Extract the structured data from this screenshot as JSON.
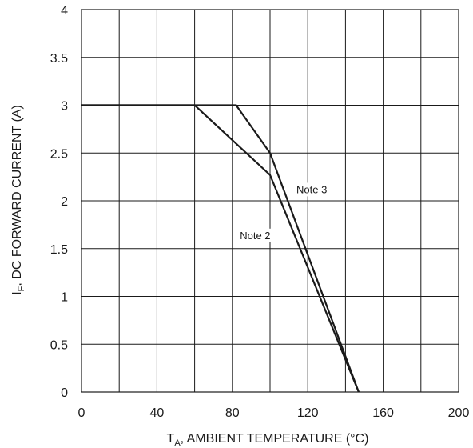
{
  "chart_data": {
    "type": "line",
    "xlabel_main": "T",
    "xlabel_sub": "A",
    "xlabel_rest": ", AMBIENT TEMPERATURE (°C)",
    "ylabel_main": "I",
    "ylabel_sub": "F",
    "ylabel_rest": ", DC FORWARD CURRENT (A)",
    "xlim": [
      0,
      200
    ],
    "ylim": [
      0,
      4
    ],
    "x_ticks": [
      0,
      40,
      80,
      120,
      160,
      200
    ],
    "x_tick_labels": [
      "0",
      "40",
      "80",
      "120",
      "160",
      "200"
    ],
    "y_ticks": [
      0,
      0.5,
      1,
      1.5,
      2,
      2.5,
      3,
      3.5,
      4
    ],
    "y_tick_labels": [
      "0",
      "0.5",
      "1",
      "1.5",
      "2",
      "2.5",
      "3",
      "3.5",
      "4"
    ],
    "grid_x_step": 20,
    "grid_y_step": 0.5,
    "grid": true,
    "series": [
      {
        "name": "Note 2",
        "x": [
          0,
          60,
          100,
          147
        ],
        "y": [
          3,
          3,
          2.27,
          0
        ]
      },
      {
        "name": "Note 3",
        "x": [
          0,
          82,
          100,
          147
        ],
        "y": [
          3,
          3,
          2.5,
          0
        ]
      }
    ],
    "annotations": [
      {
        "text": "Note 3",
        "x": 114,
        "y": 2.08
      },
      {
        "text": "Note 2",
        "x": 84,
        "y": 1.6
      }
    ],
    "colors": {
      "line": "#1a1a1a",
      "grid": "#1a1a1a"
    }
  }
}
